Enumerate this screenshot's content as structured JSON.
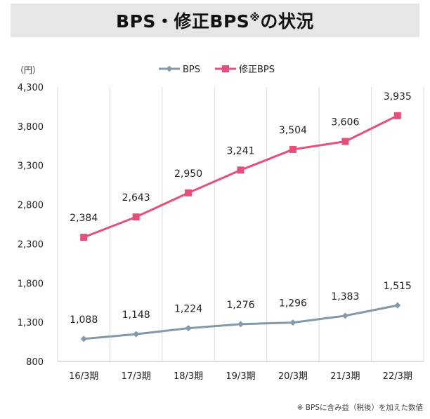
{
  "title": {
    "main": "BPS・修正BPS",
    "mark": "※",
    "tail": "の状況"
  },
  "footnote": "※ BPSに含み益（税後）を加えた数値",
  "chart_data": {
    "type": "line",
    "ylabel": "（円）",
    "ylim": [
      800,
      4300
    ],
    "yticks": [
      800,
      1300,
      1800,
      2300,
      2800,
      3300,
      3800,
      4300
    ],
    "ytick_labels": [
      "800",
      "1,300",
      "1,800",
      "2,300",
      "2,800",
      "3,300",
      "3,800",
      "4,300"
    ],
    "categories": [
      "16/3期",
      "17/3期",
      "18/3期",
      "19/3期",
      "20/3期",
      "21/3期",
      "22/3期"
    ],
    "grid": "vertical",
    "legend": "top-center",
    "series": [
      {
        "name": "BPS",
        "color": "#8398a8",
        "marker": "diamond",
        "values": [
          1088,
          1148,
          1224,
          1276,
          1296,
          1383,
          1515
        ],
        "labels": [
          "1,088",
          "1,148",
          "1,224",
          "1,276",
          "1,296",
          "1,383",
          "1,515"
        ]
      },
      {
        "name": "修正BPS",
        "color": "#e54f7a",
        "marker": "square",
        "values": [
          2384,
          2643,
          2950,
          3241,
          3504,
          3606,
          3935
        ],
        "labels": [
          "2,384",
          "2,643",
          "2,950",
          "3,241",
          "3,504",
          "3,606",
          "3,935"
        ]
      }
    ]
  }
}
